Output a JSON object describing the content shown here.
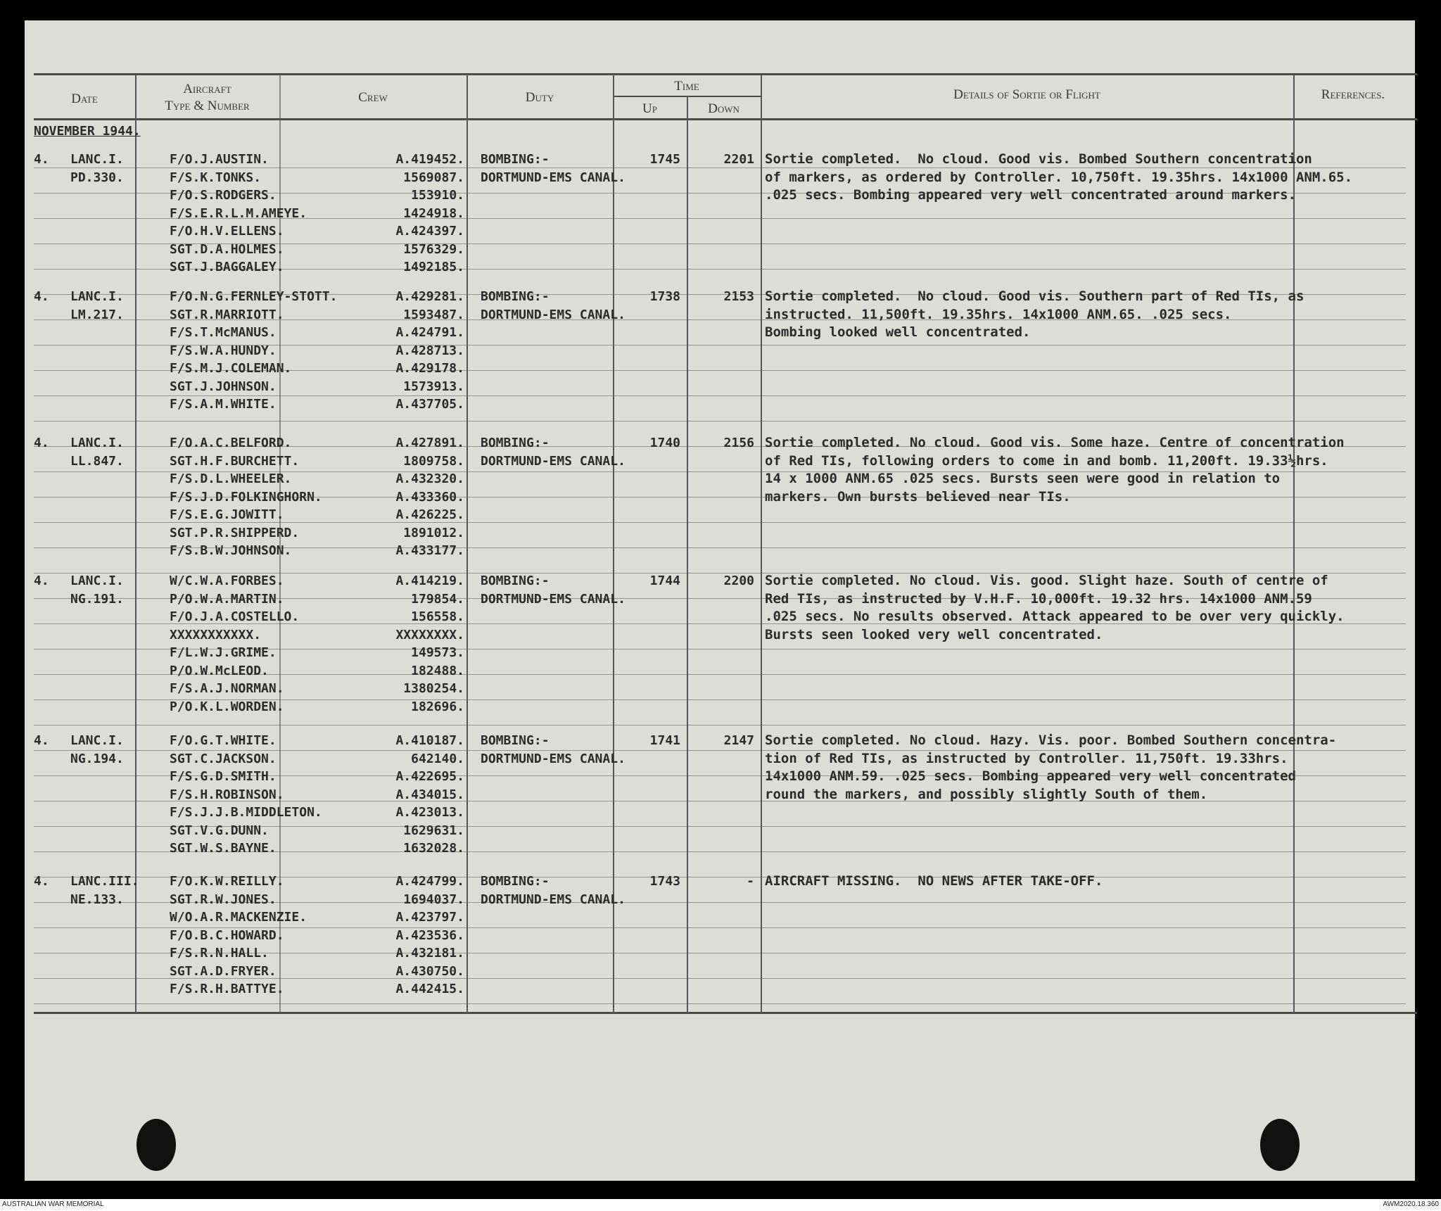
{
  "header": {
    "date": "Date",
    "aircraft": "Aircraft",
    "aircraft_sub": "Type & Number",
    "crew": "Crew",
    "duty": "Duty",
    "time": "Time",
    "up": "Up",
    "down": "Down",
    "details": "Details of Sortie or Flight",
    "references": "References."
  },
  "month": "NOVEMBER 1944.",
  "sorties": [
    {
      "date": "4.",
      "aircraft": [
        "LANC.I.",
        "PD.330."
      ],
      "crew": [
        [
          "F/O.J.AUSTIN.",
          "A.419452."
        ],
        [
          "F/S.K.TONKS.",
          "1569087."
        ],
        [
          "F/O.S.RODGERS.",
          "153910."
        ],
        [
          "F/S.E.R.L.M.AMEYE.",
          "1424918."
        ],
        [
          "F/O.H.V.ELLENS.",
          "A.424397."
        ],
        [
          "SGT.D.A.HOLMES.",
          "1576329."
        ],
        [
          "SGT.J.BAGGALEY.",
          "1492185."
        ]
      ],
      "duty": [
        "BOMBING:-",
        "DORTMUND-EMS CANAL."
      ],
      "up": "1745",
      "down": "2201",
      "details": [
        "Sortie completed.  No cloud. Good vis. Bombed Southern concentration",
        "of markers, as ordered by Controller. 10,750ft. 19.35hrs. 14x1000 ANM.65.",
        ".025 secs. Bombing appeared very well concentrated around markers."
      ]
    },
    {
      "date": "4.",
      "aircraft": [
        "LANC.I.",
        "LM.217."
      ],
      "crew": [
        [
          "F/O.N.G.FERNLEY-STOTT.",
          "A.429281."
        ],
        [
          "SGT.R.MARRIOTT.",
          "1593487."
        ],
        [
          "F/S.T.McMANUS.",
          "A.424791."
        ],
        [
          "F/S.W.A.HUNDY.",
          "A.428713."
        ],
        [
          "F/S.M.J.COLEMAN.",
          "A.429178."
        ],
        [
          "SGT.J.JOHNSON.",
          "1573913."
        ],
        [
          "F/S.A.M.WHITE.",
          "A.437705."
        ]
      ],
      "duty": [
        "BOMBING:-",
        "DORTMUND-EMS CANAL."
      ],
      "up": "1738",
      "down": "2153",
      "details": [
        "Sortie completed.  No cloud. Good vis. Southern part of Red TIs, as",
        "instructed. 11,500ft. 19.35hrs. 14x1000 ANM.65. .025 secs.",
        "Bombing looked well concentrated."
      ]
    },
    {
      "date": "4.",
      "aircraft": [
        "LANC.I.",
        "LL.847."
      ],
      "crew": [
        [
          "F/O.A.C.BELFORD.",
          "A.427891."
        ],
        [
          "SGT.H.F.BURCHETT.",
          "1809758."
        ],
        [
          "F/S.D.L.WHEELER.",
          "A.432320."
        ],
        [
          "F/S.J.D.FOLKINGHORN.",
          "A.433360."
        ],
        [
          "F/S.E.G.JOWITT.",
          "A.426225."
        ],
        [
          "SGT.P.R.SHIPPERD.",
          "1891012."
        ],
        [
          "F/S.B.W.JOHNSON.",
          "A.433177."
        ]
      ],
      "duty": [
        "BOMBING:-",
        "DORTMUND-EMS CANAL."
      ],
      "up": "1740",
      "down": "2156",
      "details": [
        "Sortie completed. No cloud. Good vis. Some haze. Centre of concentration",
        "of Red TIs, following orders to come in and bomb. 11,200ft. 19.33½hrs.",
        "14 x 1000 ANM.65 .025 secs. Bursts seen were good in relation to",
        "markers. Own bursts believed near TIs."
      ]
    },
    {
      "date": "4.",
      "aircraft": [
        "LANC.I.",
        "NG.191."
      ],
      "crew": [
        [
          "W/C.W.A.FORBES.",
          "A.414219."
        ],
        [
          "P/O.W.A.MARTIN.",
          "179854."
        ],
        [
          "F/O.J.A.COSTELLO.",
          "156558."
        ],
        [
          "XXXXXXXXXXX.",
          "XXXXXXXX."
        ],
        [
          "F/L.W.J.GRIME.",
          "149573."
        ],
        [
          "P/O.W.McLEOD.",
          "182488."
        ],
        [
          "F/S.A.J.NORMAN.",
          "1380254."
        ],
        [
          "P/O.K.L.WORDEN.",
          "182696."
        ]
      ],
      "duty": [
        "BOMBING:-",
        "DORTMUND-EMS CANAL."
      ],
      "up": "1744",
      "down": "2200",
      "details": [
        "Sortie completed. No cloud. Vis. good. Slight haze. South of centre of",
        "Red TIs, as instructed by V.H.F. 10,000ft. 19.32 hrs. 14x1000 ANM.59",
        ".025 secs. No results observed. Attack appeared to be over very quickly.",
        "Bursts seen looked very well concentrated."
      ]
    },
    {
      "date": "4.",
      "aircraft": [
        "LANC.I.",
        "NG.194."
      ],
      "crew": [
        [
          "F/O.G.T.WHITE.",
          "A.410187."
        ],
        [
          "SGT.C.JACKSON.",
          "642140."
        ],
        [
          "F/S.G.D.SMITH.",
          "A.422695."
        ],
        [
          "F/S.H.ROBINSON.",
          "A.434015."
        ],
        [
          "F/S.J.J.B.MIDDLETON.",
          "A.423013."
        ],
        [
          "SGT.V.G.DUNN.",
          "1629631."
        ],
        [
          "SGT.W.S.BAYNE.",
          "1632028."
        ]
      ],
      "duty": [
        "BOMBING:-",
        "DORTMUND-EMS CANAL."
      ],
      "up": "1741",
      "down": "2147",
      "details": [
        "Sortie completed. No cloud. Hazy. Vis. poor. Bombed Southern concentra-",
        "tion of Red TIs, as instructed by Controller. 11,750ft. 19.33hrs.",
        "14x1000 ANM.59. .025 secs. Bombing appeared very well concentrated",
        "round the markers, and possibly slightly South of them."
      ]
    },
    {
      "date": "4.",
      "aircraft": [
        "LANC.III.",
        "NE.133."
      ],
      "crew": [
        [
          "F/O.K.W.REILLY.",
          "A.424799."
        ],
        [
          "SGT.R.W.JONES.",
          "1694037."
        ],
        [
          "W/O.A.R.MACKENZIE.",
          "A.423797."
        ],
        [
          "F/O.B.C.HOWARD.",
          "A.423536."
        ],
        [
          "F/S.R.N.HALL.",
          "A.432181."
        ],
        [
          "SGT.A.D.FRYER.",
          "A.430750."
        ],
        [
          "F/S.R.H.BATTYE.",
          "A.442415."
        ]
      ],
      "duty": [
        "BOMBING:-",
        "DORTMUND-EMS CANAL."
      ],
      "up": "1743",
      "down": "-",
      "details": [
        "AIRCRAFT MISSING.  NO NEWS AFTER TAKE-OFF."
      ]
    }
  ],
  "footer": {
    "left": "AUSTRALIAN WAR MEMORIAL",
    "right": "AWM2020.18.360"
  },
  "colors": {
    "paper": "#dcddd6",
    "ink": "#2b2b2b",
    "background": "#000000"
  }
}
